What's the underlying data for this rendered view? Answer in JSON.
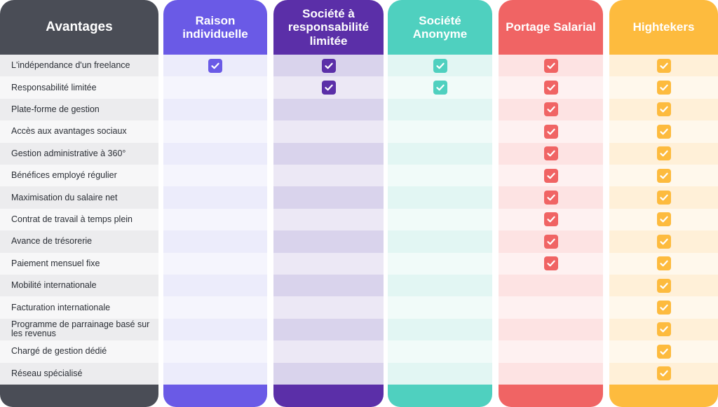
{
  "header": {
    "avantages": "Avantages"
  },
  "rows": [
    "L'indépendance d'un freelance",
    "Responsabilité limitée",
    "Plate-forme de gestion",
    "Accès aux avantages sociaux",
    "Gestion administrative à 360°",
    "Bénéfices employé régulier",
    "Maximisation du salaire net",
    "Contrat de travail à temps plein",
    "Avance de trésorerie",
    "Paiement mensuel fixe",
    "Mobilité internationale",
    "Facturation internationale",
    "Programme de parrainage basé sur les revenus",
    "Chargé de gestion dédié",
    "Réseau spécialisé"
  ],
  "columns": [
    {
      "key": "raison",
      "title": "Raison individuelle",
      "color": "#6a5ae6",
      "band_a": "#ececfb",
      "band_b": "#f5f5fd",
      "check_color": "#6a5ae6",
      "checks": [
        true,
        false,
        false,
        false,
        false,
        false,
        false,
        false,
        false,
        false,
        false,
        false,
        false,
        false,
        false
      ]
    },
    {
      "key": "sarl",
      "title": "Société à responsabilité limitée",
      "color": "#5b2fa8",
      "band_a": "#d9d3ec",
      "band_b": "#ece8f5",
      "check_color": "#5b2fa8",
      "checks": [
        true,
        true,
        false,
        false,
        false,
        false,
        false,
        false,
        false,
        false,
        false,
        false,
        false,
        false,
        false
      ]
    },
    {
      "key": "sa",
      "title": "Société Anonyme",
      "color": "#4fd0bf",
      "band_a": "#e2f6f3",
      "band_b": "#f1fbf9",
      "check_color": "#4fd0bf",
      "checks": [
        true,
        true,
        false,
        false,
        false,
        false,
        false,
        false,
        false,
        false,
        false,
        false,
        false,
        false,
        false
      ]
    },
    {
      "key": "portage",
      "title": "Portage Salarial",
      "color": "#f06464",
      "band_a": "#fde3e3",
      "band_b": "#fef1f1",
      "check_color": "#f06464",
      "checks": [
        true,
        true,
        true,
        true,
        true,
        true,
        true,
        true,
        true,
        true,
        false,
        false,
        false,
        false,
        false
      ]
    },
    {
      "key": "hightekers",
      "title": "Hightekers",
      "color": "#fdbb3e",
      "band_a": "#fff0d8",
      "band_b": "#fff8ec",
      "check_color": "#fdbb3e",
      "checks": [
        true,
        true,
        true,
        true,
        true,
        true,
        true,
        true,
        true,
        true,
        true,
        true,
        true,
        true,
        true
      ]
    }
  ],
  "colors": {
    "first_column": "#4a4d56",
    "label_band_a": "#ececee",
    "label_band_b": "#f7f7f8"
  },
  "icons": {
    "check": "checkmark-icon"
  }
}
